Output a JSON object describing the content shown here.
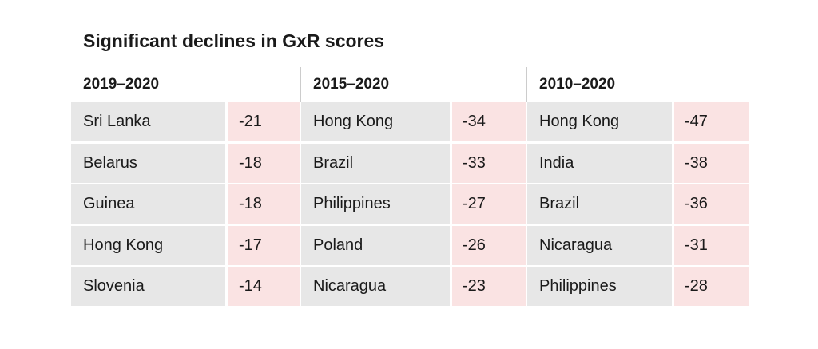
{
  "chart_data": {
    "type": "table",
    "title": "Significant declines in GxR scores",
    "groups": [
      {
        "period": "2019–2020",
        "rows": [
          {
            "country": "Sri Lanka",
            "value": "-21"
          },
          {
            "country": "Belarus",
            "value": "-18"
          },
          {
            "country": "Guinea",
            "value": "-18"
          },
          {
            "country": "Hong Kong",
            "value": "-17"
          },
          {
            "country": "Slovenia",
            "value": "-14"
          }
        ]
      },
      {
        "period": "2015–2020",
        "rows": [
          {
            "country": "Hong Kong",
            "value": "-34"
          },
          {
            "country": "Brazil",
            "value": "-33"
          },
          {
            "country": "Philippines",
            "value": "-27"
          },
          {
            "country": "Poland",
            "value": "-26"
          },
          {
            "country": "Nicaragua",
            "value": "-23"
          }
        ]
      },
      {
        "period": "2010–2020",
        "rows": [
          {
            "country": "Hong Kong",
            "value": "-47"
          },
          {
            "country": "India",
            "value": "-38"
          },
          {
            "country": "Brazil",
            "value": "-36"
          },
          {
            "country": "Nicaragua",
            "value": "-31"
          },
          {
            "country": "Philippines",
            "value": "-28"
          }
        ]
      }
    ]
  }
}
